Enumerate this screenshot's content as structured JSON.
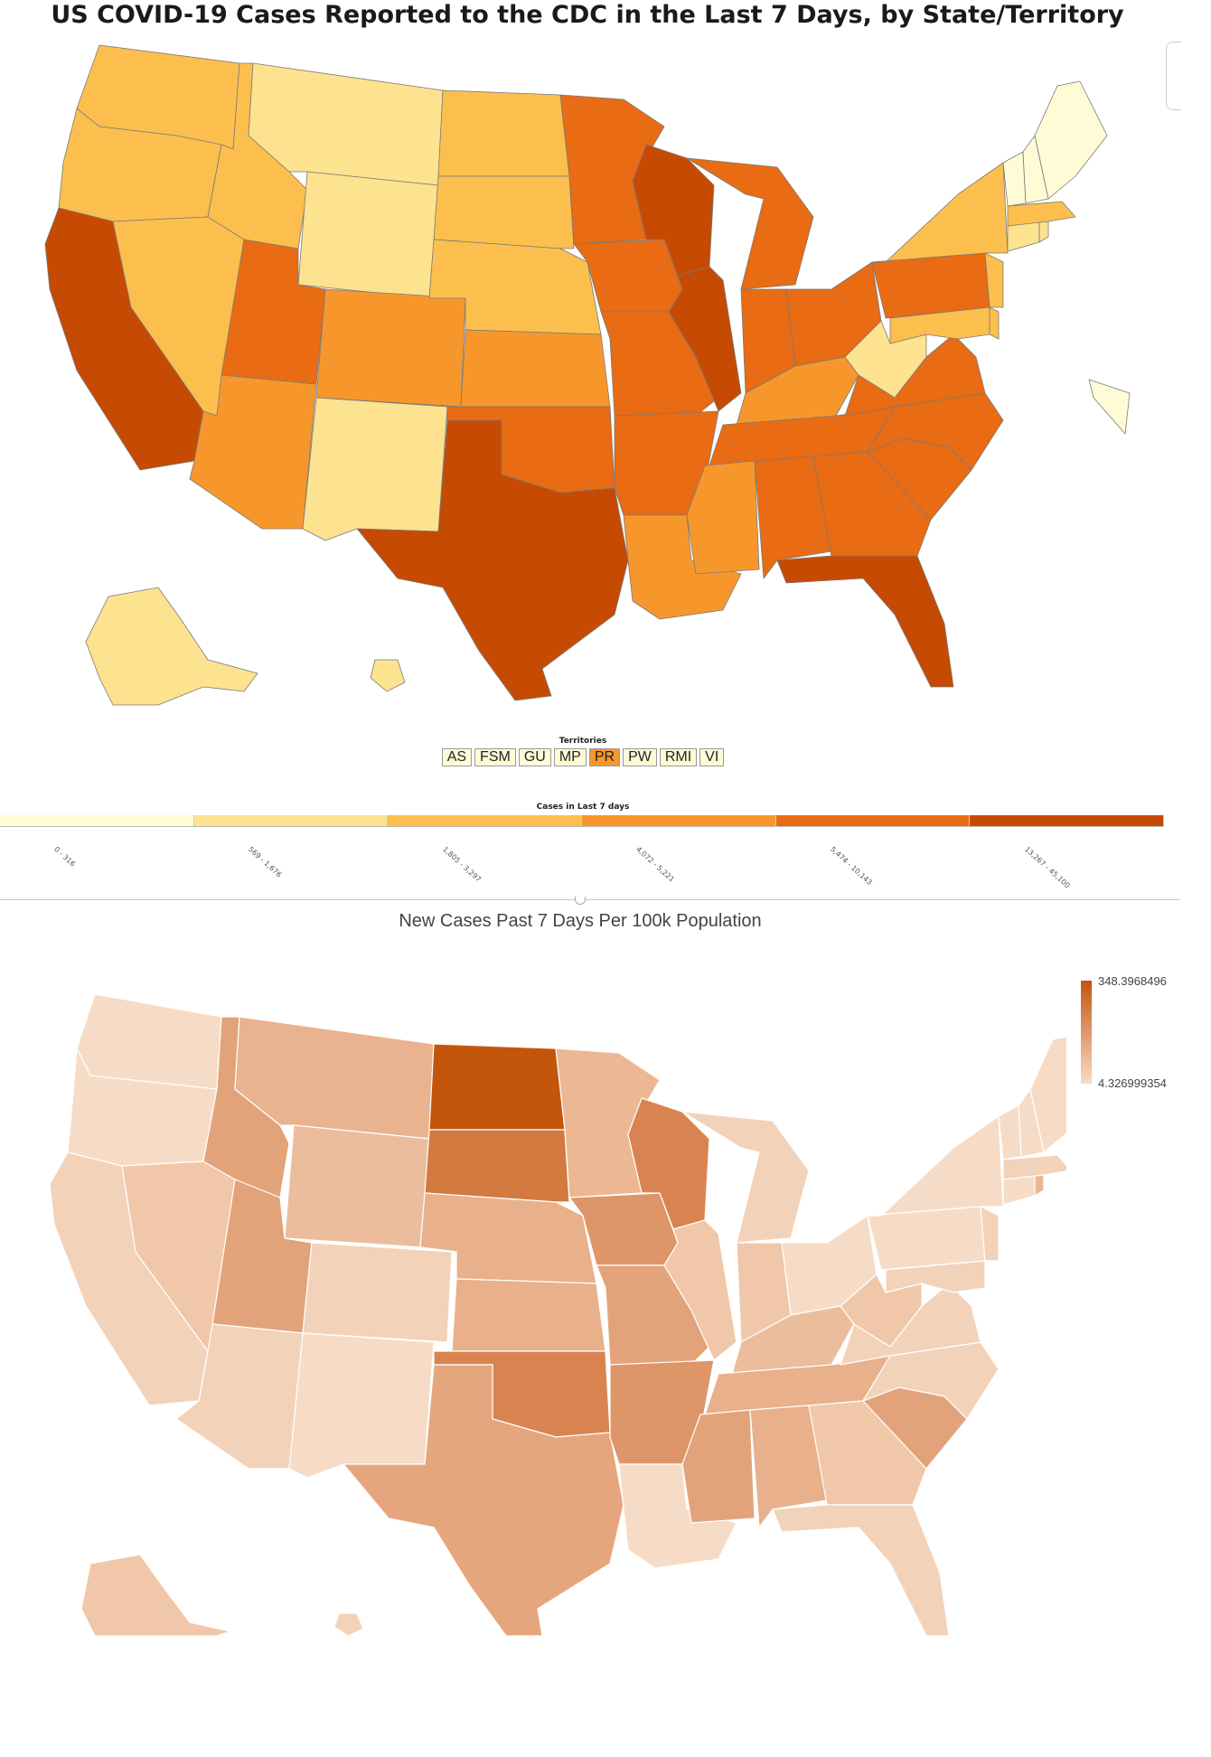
{
  "map1": {
    "title": "US COVID-19 Cases Reported to the CDC in the Last 7 Days, by State/Territory",
    "territories_label": "Territories",
    "territories": [
      {
        "code": "AS",
        "color": "#fffbd6"
      },
      {
        "code": "FSM",
        "color": "#fffbd6"
      },
      {
        "code": "GU",
        "color": "#fffbd6"
      },
      {
        "code": "MP",
        "color": "#fffbd6"
      },
      {
        "code": "PR",
        "color": "#f7972b"
      },
      {
        "code": "PW",
        "color": "#fffbd6"
      },
      {
        "code": "RMI",
        "color": "#fffbd6"
      },
      {
        "code": "VI",
        "color": "#fffbd6"
      }
    ],
    "legend_title": "Cases in Last 7 days",
    "legend_bins": [
      {
        "label": "0 - 316",
        "color": "#fffbd6"
      },
      {
        "label": "569 - 1,676",
        "color": "#fde28f"
      },
      {
        "label": "1,805 - 3,297",
        "color": "#fcbf4e"
      },
      {
        "label": "4,072 - 5,221",
        "color": "#f7972b"
      },
      {
        "label": "5,474 - 10,143",
        "color": "#e96b14"
      },
      {
        "label": "13,267 - 45,100",
        "color": "#c74a02"
      }
    ]
  },
  "map2": {
    "title": "New Cases Past 7 Days Per 100k Population",
    "scale_max": "348.3968496",
    "scale_min": "4.326999354"
  }
}
